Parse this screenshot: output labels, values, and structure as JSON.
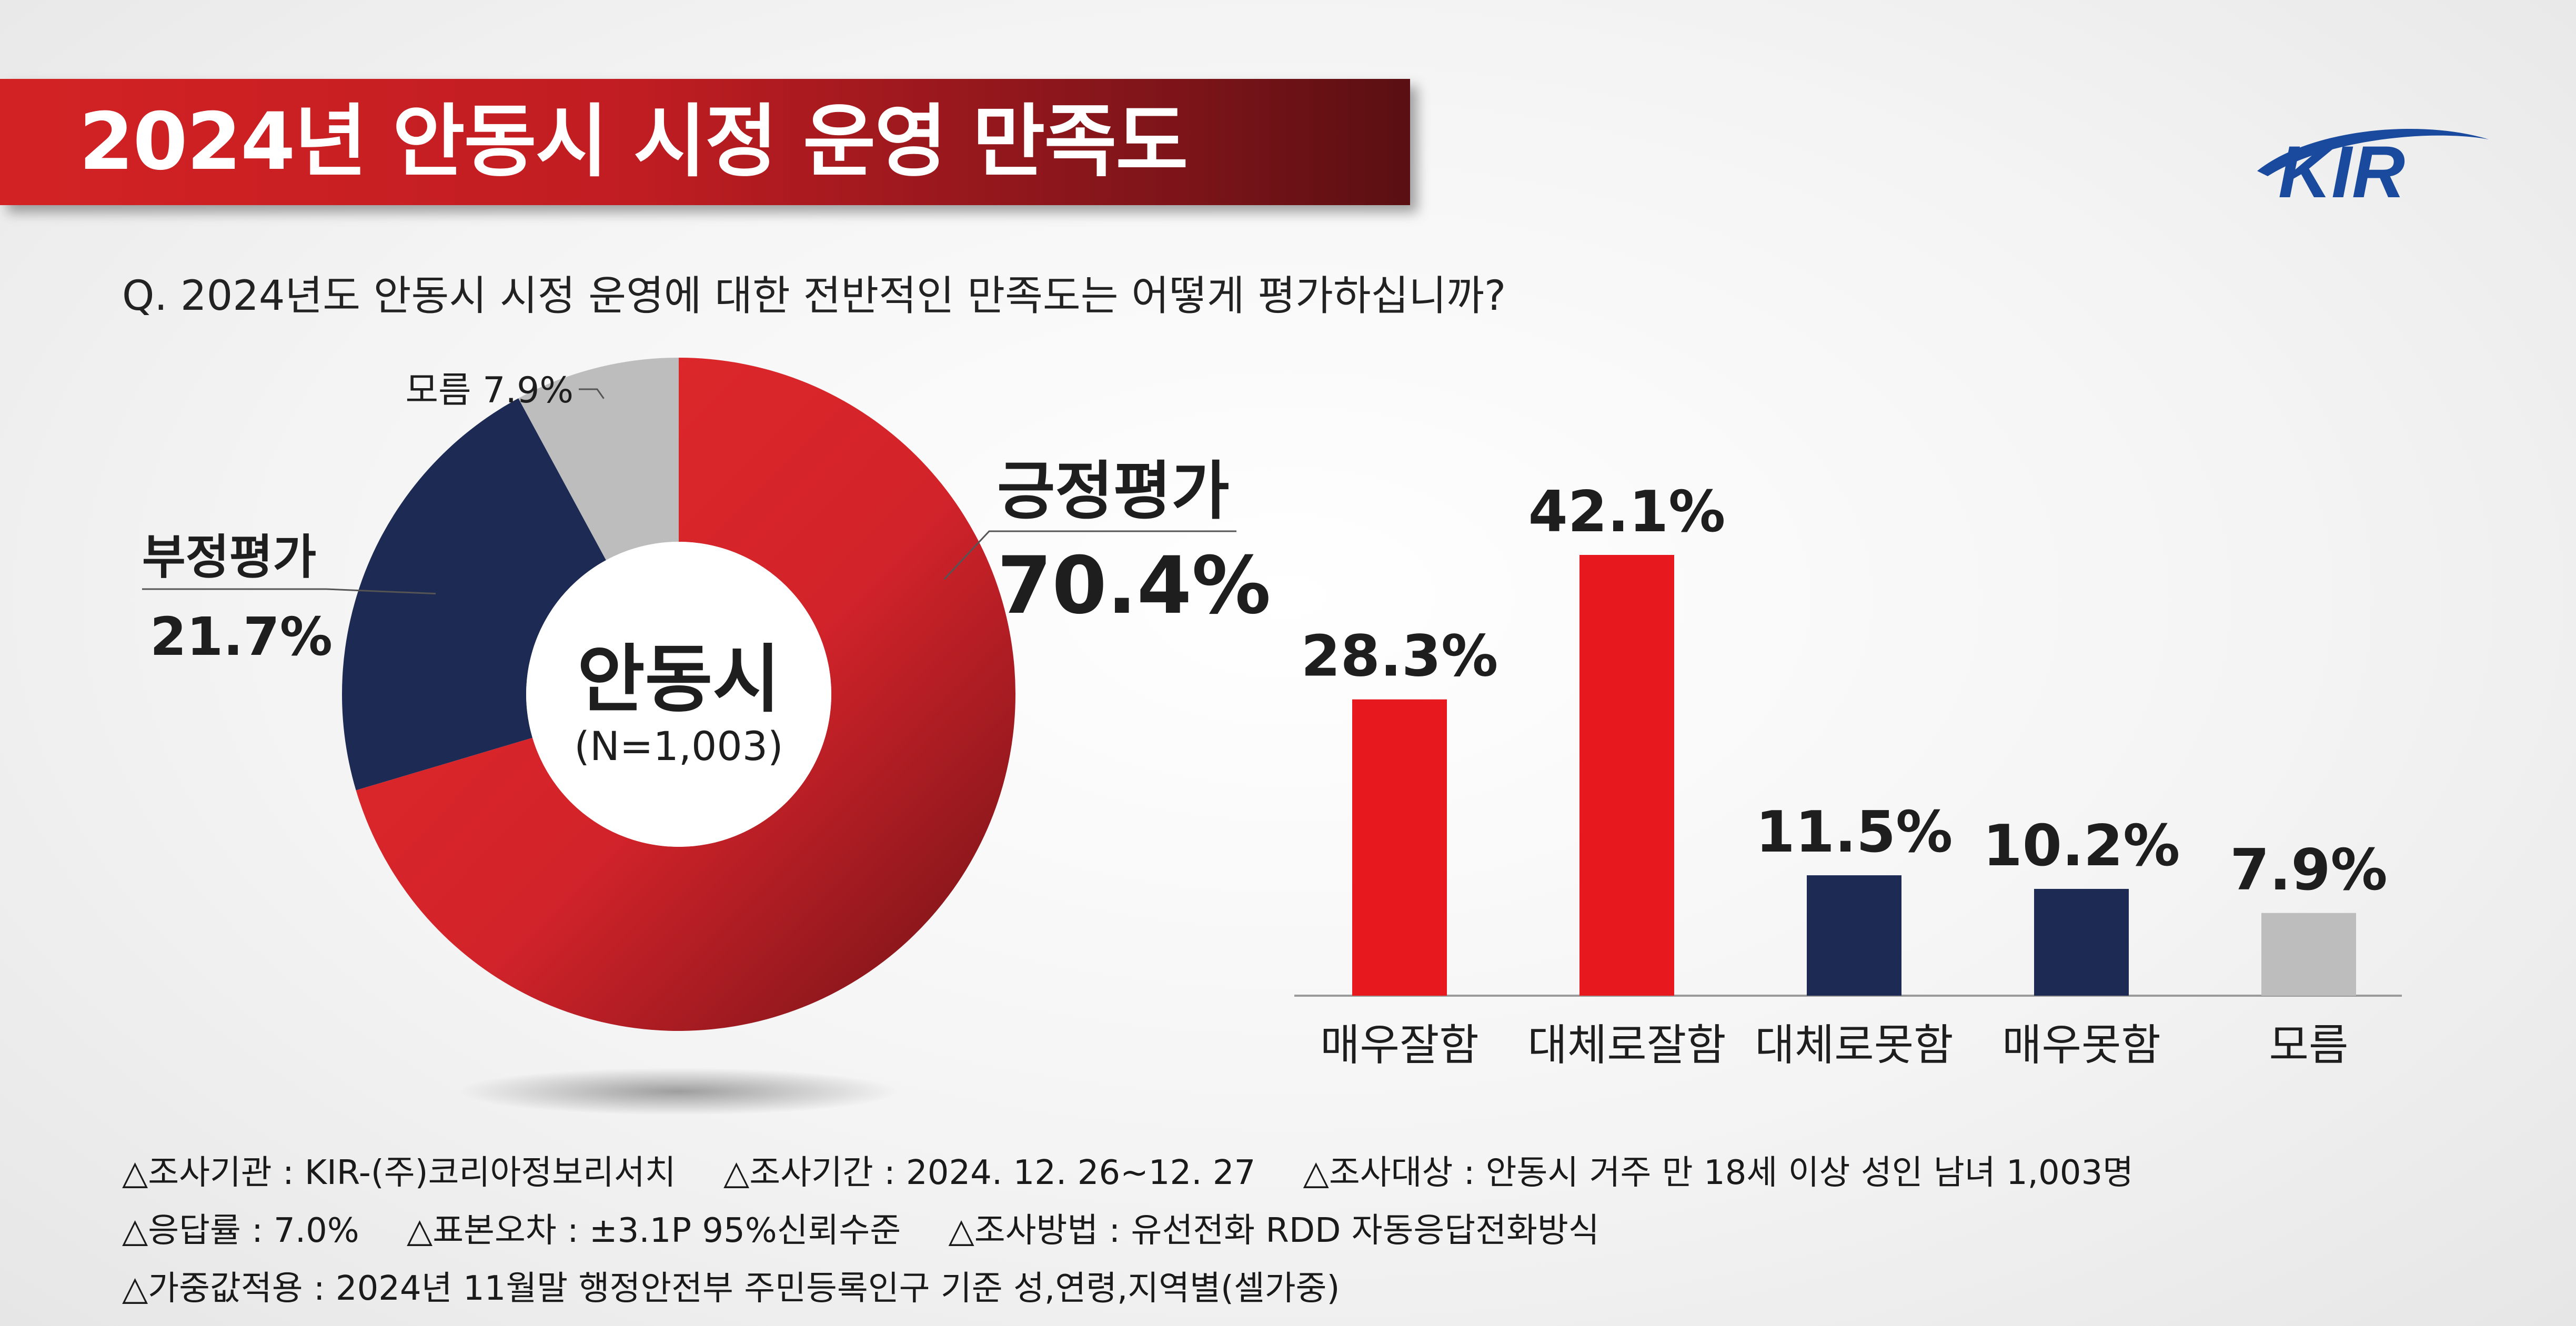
{
  "title": "2024년 안동시 시정 운영 만족도",
  "logo_text": "KIR",
  "question": "Q. 2024년도 안동시 시정 운영에 대한 전반적인 만족도는 어떻게 평가하십니까?",
  "colors": {
    "positive": "#e8181f",
    "negative": "#1c2a54",
    "unknown": "#bdbdbd",
    "title_bg": "#c01d22",
    "logo_blue": "#1a4a9e"
  },
  "chart_data": [
    {
      "type": "pie",
      "center_label": "안동시",
      "center_sublabel": "(N=1,003)",
      "slices": [
        {
          "label": "긍정평가",
          "value": 70.4,
          "value_label": "70.4%",
          "color": "#d8232a"
        },
        {
          "label": "부정평가",
          "value": 21.7,
          "value_label": "21.7%",
          "color": "#1c2a54"
        },
        {
          "label": "모름",
          "value": 7.9,
          "value_label": "모름 7.9%",
          "color": "#bdbdbd"
        }
      ]
    },
    {
      "type": "bar",
      "categories": [
        "매우잘함",
        "대체로잘함",
        "대체로못함",
        "매우못함",
        "모름"
      ],
      "values": [
        28.3,
        42.1,
        11.5,
        10.2,
        7.9
      ],
      "value_labels": [
        "28.3%",
        "42.1%",
        "11.5%",
        "10.2%",
        "7.9%"
      ],
      "colors": [
        "#e8181f",
        "#e8181f",
        "#1c2a54",
        "#1c2a54",
        "#bdbdbd"
      ],
      "ylim": [
        0,
        50
      ]
    }
  ],
  "footer": {
    "rows": [
      [
        "△조사기관 : KIR-(주)코리아정보리서치",
        "△조사기간 : 2024. 12. 26~12. 27",
        "△조사대상 : 안동시 거주 만 18세 이상 성인 남녀 1,003명"
      ],
      [
        "△응답률 : 7.0%",
        "△표본오차 : ±3.1P  95%신뢰수준",
        "△조사방법 : 유선전화 RDD 자동응답전화방식"
      ],
      [
        "△가중값적용 : 2024년 11월말 행정안전부 주민등록인구 기준 성,연령,지역별(셀가중)"
      ]
    ]
  }
}
